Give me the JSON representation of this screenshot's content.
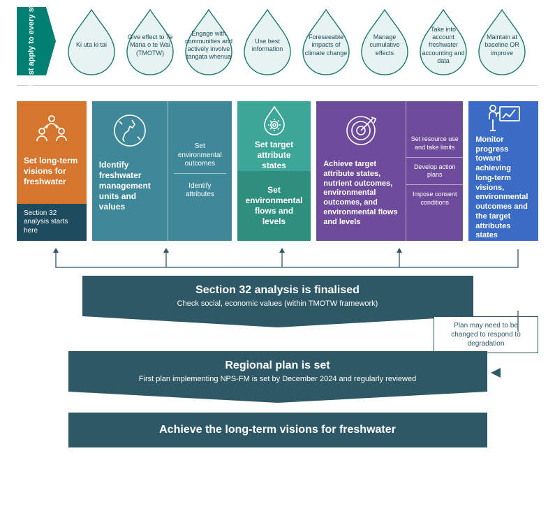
{
  "mustApply": "Must apply to every step",
  "drops": [
    "Ki uta ki tai",
    "Give effect to Te Mana o te Wai (TMOTW)",
    "Engage with communities and actively involve tangata whenua",
    "Use best information",
    "Foreseeable impacts of climate change",
    "Manage cumulative effects",
    "Take into account freshwater accounting and data",
    "Maintain at baseline OR improve"
  ],
  "card1": {
    "title": "Set long-term visions for freshwater",
    "sub": "Section 32 analysis starts here"
  },
  "card2": {
    "title": "Identify freshwater management units and values",
    "r1": "Set environmental outcomes",
    "r2": "Identify attributes"
  },
  "card3": {
    "top": "Set target attribute states",
    "bot": "Set environmental flows and levels"
  },
  "card4": {
    "title": "Achieve target attribute states, nutrient outcomes, environmental outcomes, and environmental flows and levels",
    "r1": "Set resource use and take limits",
    "r2": "Develop action plans",
    "r3": "Impose consent conditions"
  },
  "card5": {
    "title": "Monitor progress toward achieving long-term visions, environmental outcomes and the target attributes states"
  },
  "banner1": {
    "title": "Section 32 analysis is finalised",
    "sub": "Check social, economic values (within TMOTW framework)"
  },
  "note": "Plan may need to be changed to respond to degradation",
  "banner2": {
    "title": "Regional plan is set",
    "sub": "First plan implementing NPS-FM is set by December 2024 and regularly reviewed"
  },
  "banner3": {
    "title": "Achieve the long-term visions for freshwater"
  },
  "colors": {
    "teal": "#008073",
    "darkTeal": "#2e5866",
    "orange": "#d6752e",
    "blueGrey": "#3f889a",
    "green1": "#3da698",
    "green2": "#2e8f7e",
    "purple": "#6f4c9b",
    "blue": "#3a6cc6",
    "dropFill": "#e6f3f1",
    "dropStroke": "#1d7a6f"
  }
}
